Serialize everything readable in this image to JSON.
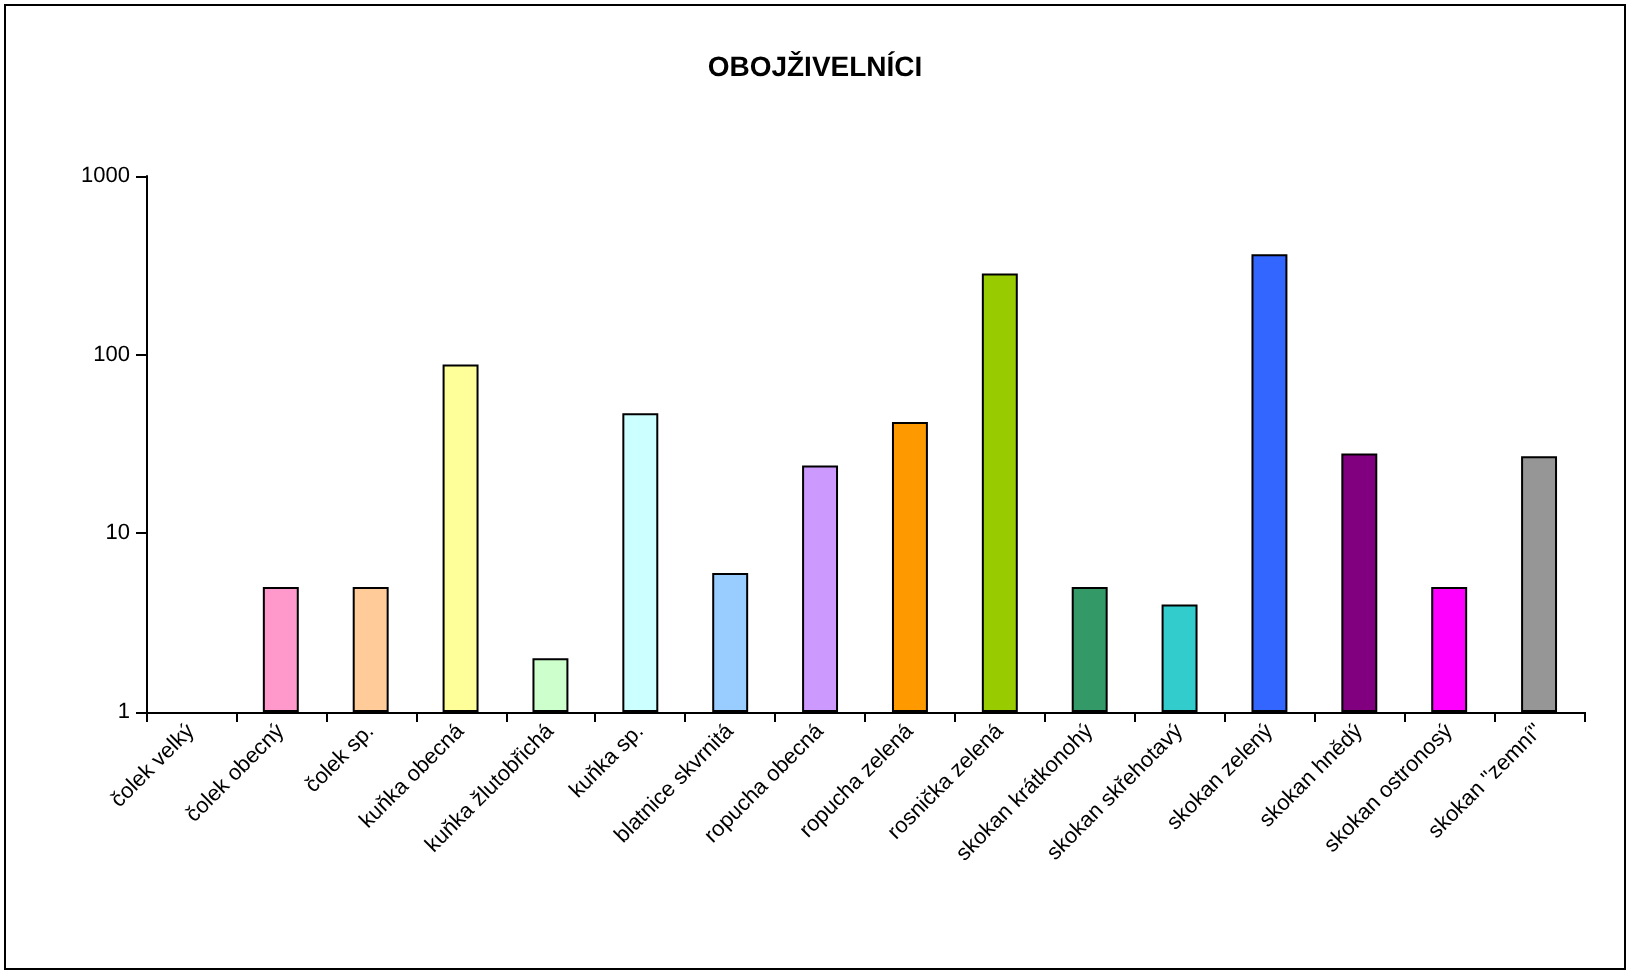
{
  "chart_data": {
    "type": "bar",
    "title": "OBOJŽIVELNÍCI",
    "categories": [
      "čolek velký",
      "čolek obecný",
      "čolek sp.",
      "kuňka obecná",
      "kuňka žlutobřichá",
      "kuňka sp.",
      "blatnice skvrnitá",
      "ropucha obecná",
      "ropucha zelená",
      "rosnička zelená",
      "skokan krátkonohý",
      "skokan skřehotavý",
      "skokan zelený",
      "skokan hnědý",
      "skokan ostronosý",
      "skokan \"zemní\""
    ],
    "values": [
      null,
      5,
      5,
      88,
      2,
      47,
      6,
      24,
      42,
      285,
      5,
      4,
      365,
      28,
      5,
      27
    ],
    "colors": [
      null,
      "#ff99cc",
      "#ffcc99",
      "#ffff99",
      "#ccffcc",
      "#ccffff",
      "#99ccff",
      "#cc99ff",
      "#ff9900",
      "#99cc00",
      "#339966",
      "#33cccc",
      "#3366ff",
      "#800080",
      "#ff00ff",
      "#969696"
    ],
    "log": true,
    "ylim": [
      1,
      1000
    ],
    "yticks": [
      1,
      10,
      100,
      1000
    ],
    "grid": false
  }
}
